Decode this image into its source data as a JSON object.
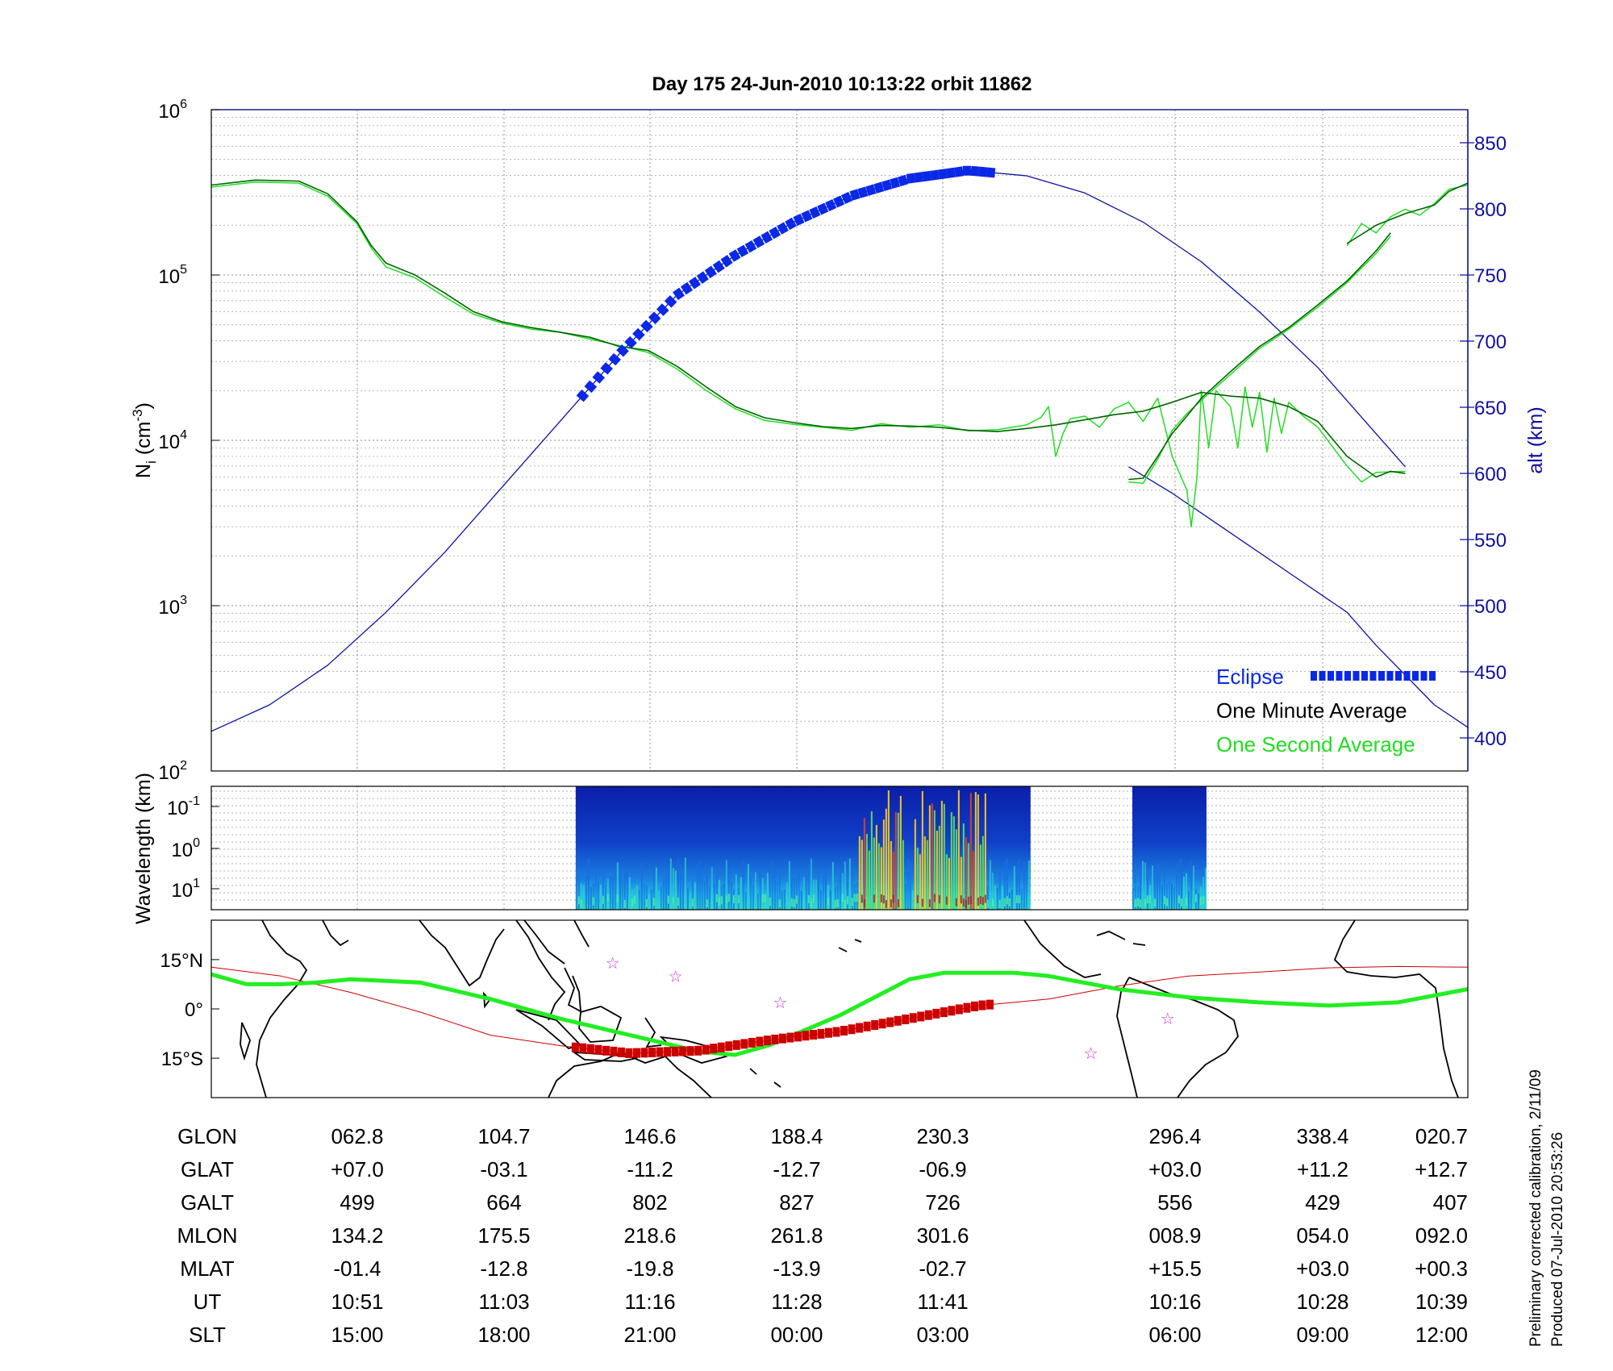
{
  "title": "Day 175  24-Jun-2010 10:13:22   orbit 11862",
  "side_note": {
    "line1": "Preliminary corrected calibration, 2/11/09",
    "line2": "Produced 07-Jul-2010 20:53:26"
  },
  "colors": {
    "one_minute": "#006400",
    "one_second": "#22dd22",
    "altitude": "#1010a0",
    "eclipse": "#0a28e6",
    "footprint": "#cc0000",
    "mag_equator": "#22ee22",
    "star": "#cc33cc"
  },
  "chart_data": [
    {
      "type": "line",
      "panel": "density",
      "ylabel_main": "N",
      "ylabel_sub": "i",
      "ylabel_unit_pre": " (cm",
      "ylabel_unit_exp": "-3",
      "ylabel_unit_post": ")",
      "y_scale": "log",
      "ylim": [
        100,
        1000000
      ],
      "y_ticks": [
        {
          "base": "10",
          "exp": "2",
          "value": 100
        },
        {
          "base": "10",
          "exp": "3",
          "value": 1000
        },
        {
          "base": "10",
          "exp": "4",
          "value": 10000
        },
        {
          "base": "10",
          "exp": "5",
          "value": 100000
        },
        {
          "base": "10",
          "exp": "6",
          "value": 1000000
        }
      ],
      "y2label": "alt (km)",
      "y2lim": [
        375,
        875
      ],
      "y2_ticks": [
        "400",
        "450",
        "500",
        "550",
        "600",
        "650",
        "700",
        "750",
        "800",
        "850"
      ],
      "grid": true,
      "legend_position": "bottom-right",
      "legend": [
        "Eclipse",
        "One Minute Average",
        "One Second Average"
      ],
      "x_range_minutes": [
        0,
        86.3
      ],
      "series": [
        {
          "name": "One Minute Average",
          "segments": [
            [
              [
                0,
                350000
              ],
              [
                3,
                375000
              ],
              [
                6,
                370000
              ],
              [
                8,
                310000
              ],
              [
                10,
                210000
              ],
              [
                11,
                150000
              ],
              [
                12,
                118000
              ],
              [
                14,
                100000
              ],
              [
                16,
                78000
              ],
              [
                18,
                60000
              ],
              [
                20,
                52000
              ],
              [
                22,
                48000
              ],
              [
                24,
                45000
              ],
              [
                26,
                42000
              ],
              [
                28,
                37000
              ],
              [
                30,
                35000
              ],
              [
                32,
                28000
              ],
              [
                34,
                21000
              ],
              [
                36,
                16000
              ],
              [
                38,
                13700
              ],
              [
                40,
                12800
              ],
              [
                42,
                12100
              ],
              [
                44,
                11800
              ],
              [
                46,
                12300
              ],
              [
                48,
                12200
              ],
              [
                50,
                12000
              ],
              [
                52,
                11500
              ],
              [
                54,
                11300
              ],
              [
                56,
                11800
              ],
              [
                58,
                12400
              ],
              [
                60,
                13300
              ],
              [
                62,
                14300
              ],
              [
                64,
                15000
              ],
              [
                66,
                17000
              ],
              [
                68,
                19500
              ],
              [
                70,
                18500
              ],
              [
                72,
                18000
              ],
              [
                74,
                16000
              ],
              [
                76,
                13000
              ],
              [
                78,
                8000
              ],
              [
                80,
                6000
              ],
              [
                81,
                6500
              ],
              [
                82,
                6300
              ]
            ],
            [
              [
                63,
                5800
              ],
              [
                64,
                5900
              ],
              [
                65,
                8000
              ],
              [
                66,
                11000
              ],
              [
                67,
                14000
              ],
              [
                68,
                18000
              ],
              [
                70,
                26000
              ],
              [
                72,
                37000
              ],
              [
                74,
                48000
              ],
              [
                76,
                66000
              ],
              [
                78,
                92000
              ],
              [
                80,
                140000
              ],
              [
                81,
                180000
              ]
            ],
            [
              [
                78,
                155000
              ],
              [
                80,
                200000
              ],
              [
                82,
                235000
              ],
              [
                84,
                265000
              ],
              [
                85,
                320000
              ],
              [
                86.3,
                360000
              ]
            ]
          ]
        },
        {
          "name": "One Second Average",
          "segments": [
            [
              [
                0,
                340000
              ],
              [
                3,
                365000
              ],
              [
                6,
                360000
              ],
              [
                8,
                300000
              ],
              [
                10,
                205000
              ],
              [
                11,
                145000
              ],
              [
                12,
                112000
              ],
              [
                14,
                96000
              ],
              [
                16,
                74000
              ],
              [
                18,
                58000
              ],
              [
                20,
                51000
              ],
              [
                22,
                47000
              ],
              [
                24,
                45000
              ],
              [
                26,
                41000
              ],
              [
                28,
                37500
              ],
              [
                30,
                34000
              ],
              [
                32,
                27000
              ],
              [
                34,
                20000
              ],
              [
                36,
                15500
              ],
              [
                38,
                13200
              ],
              [
                40,
                12500
              ],
              [
                42,
                12000
              ],
              [
                44,
                11500
              ],
              [
                46,
                12600
              ],
              [
                48,
                12000
              ],
              [
                50,
                12400
              ],
              [
                52,
                11400
              ],
              [
                54,
                11600
              ],
              [
                56,
                12400
              ],
              [
                57,
                13800
              ],
              [
                57.5,
                16000
              ],
              [
                58,
                8000
              ],
              [
                58.5,
                11000
              ],
              [
                59,
                13500
              ],
              [
                60,
                14000
              ],
              [
                61,
                12000
              ],
              [
                62,
                15500
              ],
              [
                63,
                17000
              ],
              [
                64,
                13000
              ],
              [
                65,
                18000
              ],
              [
                66,
                8000
              ],
              [
                67,
                5000
              ],
              [
                67.3,
                3000
              ],
              [
                67.7,
                6000
              ],
              [
                68,
                20000
              ],
              [
                68.5,
                9000
              ],
              [
                69,
                20000
              ],
              [
                70,
                16000
              ],
              [
                70.5,
                9000
              ],
              [
                71,
                21000
              ],
              [
                71.5,
                12000
              ],
              [
                72,
                19500
              ],
              [
                72.5,
                8500
              ],
              [
                73,
                18000
              ],
              [
                73.5,
                11000
              ],
              [
                74,
                17000
              ],
              [
                75,
                14000
              ],
              [
                76,
                12000
              ],
              [
                78,
                7000
              ],
              [
                79,
                5600
              ],
              [
                80,
                6400
              ],
              [
                82,
                6500
              ]
            ],
            [
              [
                63,
                5600
              ],
              [
                64,
                5500
              ],
              [
                65,
                7700
              ],
              [
                66,
                11500
              ],
              [
                67,
                14500
              ],
              [
                68,
                17500
              ],
              [
                70,
                25000
              ],
              [
                72,
                36000
              ],
              [
                74,
                47000
              ],
              [
                76,
                64000
              ],
              [
                78,
                90000
              ],
              [
                80,
                135000
              ],
              [
                81,
                172000
              ]
            ],
            [
              [
                78,
                150000
              ],
              [
                79,
                205000
              ],
              [
                80,
                180000
              ],
              [
                81,
                225000
              ],
              [
                82,
                250000
              ],
              [
                83,
                230000
              ],
              [
                84,
                270000
              ],
              [
                85,
                330000
              ],
              [
                86.3,
                350000
              ]
            ]
          ]
        },
        {
          "name": "alt (km)",
          "axis": "right",
          "segments": [
            [
              [
                0,
                405
              ],
              [
                4,
                425
              ],
              [
                8,
                455
              ],
              [
                12,
                495
              ],
              [
                16,
                540
              ],
              [
                20,
                590
              ],
              [
                24,
                640
              ],
              [
                28,
                690
              ],
              [
                32,
                735
              ],
              [
                36,
                765
              ],
              [
                40,
                790
              ],
              [
                44,
                810
              ],
              [
                48,
                823
              ],
              [
                52,
                829
              ],
              [
                56,
                825
              ],
              [
                60,
                812
              ],
              [
                64,
                790
              ],
              [
                68,
                760
              ],
              [
                72,
                722
              ],
              [
                76,
                680
              ],
              [
                80,
                630
              ],
              [
                82,
                605
              ]
            ],
            [
              [
                63,
                605
              ],
              [
                66,
                585
              ],
              [
                70,
                555
              ],
              [
                74,
                525
              ],
              [
                78,
                495
              ],
              [
                80,
                470
              ],
              [
                84,
                425
              ],
              [
                86.3,
                408
              ]
            ]
          ]
        }
      ],
      "eclipse_range_minutes": [
        25.5,
        54
      ]
    },
    {
      "type": "heatmap",
      "panel": "spectrogram",
      "ylabel": "Wavelength (km)",
      "y_scale": "log",
      "y_ticks": [
        {
          "base": "10",
          "exp": "-1"
        },
        {
          "base": "10",
          "exp": "0"
        },
        {
          "base": "10",
          "exp": "1"
        }
      ],
      "data_ranges_fraction_of_axis": [
        [
          0.29,
          0.652
        ],
        [
          0.733,
          0.792
        ]
      ]
    },
    {
      "type": "line",
      "panel": "map",
      "y_ticks": [
        "15°N",
        "0°",
        "15°S"
      ],
      "y_range_deg": [
        -27,
        27
      ],
      "series": [
        {
          "name": "magnetic equator",
          "x_deg": [
            0,
            10,
            20,
            30,
            40,
            60,
            80,
            100,
            120,
            140,
            150,
            160,
            180,
            200,
            210,
            230,
            240,
            250,
            260,
            280,
            300,
            320,
            340,
            350,
            360
          ],
          "y_deg": [
            10.5,
            7.5,
            7.5,
            8,
            9,
            8,
            3,
            -3,
            -8,
            -13,
            -14,
            -11,
            -2,
            9,
            11,
            11,
            10,
            8,
            6,
            3.5,
            2,
            1,
            2,
            4,
            6
          ]
        },
        {
          "name": "orbit track",
          "x_deg": [
            0,
            20,
            40,
            60,
            80,
            100,
            120,
            140,
            160,
            180,
            200,
            220,
            240,
            260,
            280,
            300,
            320,
            340,
            360
          ],
          "y_deg": [
            12.7,
            10,
            5,
            -1,
            -8,
            -11.2,
            -13.5,
            -12.7,
            -9.5,
            -6.9,
            -3,
            1,
            3,
            7,
            10,
            11.2,
            12.5,
            12.9,
            12.7
          ]
        }
      ],
      "stars_deg": [
        [
          115,
          14
        ],
        [
          133,
          10
        ],
        [
          163,
          2
        ],
        [
          252,
          -13.5
        ],
        [
          274,
          -3
        ]
      ]
    }
  ],
  "table": {
    "row_labels": [
      "GLON",
      "GLAT",
      "GALT",
      "MLON",
      "MLAT",
      "UT",
      "SLT"
    ],
    "columns": [
      [
        "062.8",
        "+07.0",
        "499",
        "134.2",
        "-01.4",
        "10:51",
        "15:00"
      ],
      [
        "104.7",
        "-03.1",
        "664",
        "175.5",
        "-12.8",
        "11:03",
        "18:00"
      ],
      [
        "146.6",
        "-11.2",
        "802",
        "218.6",
        "-19.8",
        "11:16",
        "21:00"
      ],
      [
        "188.4",
        "-12.7",
        "827",
        "261.8",
        "-13.9",
        "11:28",
        "00:00"
      ],
      [
        "230.3",
        "-06.9",
        "726",
        "301.6",
        "-02.7",
        "11:41",
        "03:00"
      ],
      [
        "296.4",
        "+03.0",
        "556",
        "008.9",
        "+15.5",
        "10:16",
        "06:00"
      ],
      [
        "338.4",
        "+11.2",
        "429",
        "054.0",
        "+03.0",
        "10:28",
        "09:00"
      ],
      [
        "020.7",
        "+12.7",
        "407",
        "092.0",
        "+00.3",
        "10:39",
        "12:00"
      ]
    ]
  }
}
